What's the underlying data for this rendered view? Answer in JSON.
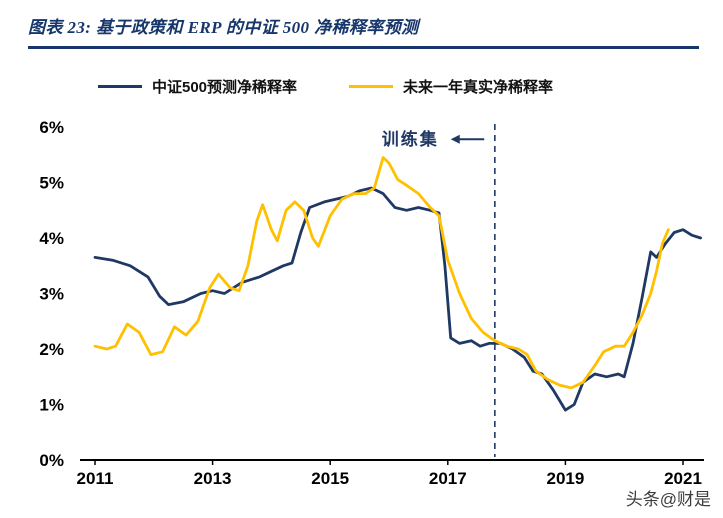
{
  "page": {
    "title": "图表 23: 基于政策和 ERP 的中证 500 净稀释率预测",
    "watermark": "头条@财是"
  },
  "chart_data": {
    "type": "line",
    "title": "基于政策和ERP的中证500净稀释率预测",
    "xlabel": "",
    "ylabel": "",
    "ylim": [
      0,
      6
    ],
    "x_range": [
      2011,
      2021.3
    ],
    "grid": false,
    "legend_position": "top",
    "ytick_labels": [
      "6%",
      "5%",
      "4%",
      "3%",
      "2%",
      "1%",
      "0%"
    ],
    "xtick_labels": [
      "2011",
      "2013",
      "2015",
      "2017",
      "2019",
      "2021"
    ],
    "annotation": {
      "label": "训练集"
    },
    "train_split_x": 2017.8,
    "colors": {
      "predicted": "#1f3864",
      "actual": "#ffc000",
      "axis": "#000000",
      "title": "#17366b"
    },
    "series": [
      {
        "name": "中证500预测净稀释率",
        "color": "#1f3864",
        "points": [
          [
            2011.0,
            3.65
          ],
          [
            2011.3,
            3.6
          ],
          [
            2011.6,
            3.5
          ],
          [
            2011.9,
            3.3
          ],
          [
            2012.1,
            2.95
          ],
          [
            2012.25,
            2.8
          ],
          [
            2012.5,
            2.85
          ],
          [
            2012.8,
            3.0
          ],
          [
            2013.0,
            3.05
          ],
          [
            2013.2,
            3.0
          ],
          [
            2013.5,
            3.2
          ],
          [
            2013.8,
            3.3
          ],
          [
            2014.0,
            3.4
          ],
          [
            2014.2,
            3.5
          ],
          [
            2014.35,
            3.55
          ],
          [
            2014.5,
            4.1
          ],
          [
            2014.65,
            4.55
          ],
          [
            2014.9,
            4.65
          ],
          [
            2015.1,
            4.7
          ],
          [
            2015.3,
            4.75
          ],
          [
            2015.5,
            4.85
          ],
          [
            2015.7,
            4.9
          ],
          [
            2015.9,
            4.8
          ],
          [
            2016.1,
            4.55
          ],
          [
            2016.3,
            4.5
          ],
          [
            2016.5,
            4.55
          ],
          [
            2016.7,
            4.5
          ],
          [
            2016.85,
            4.45
          ],
          [
            2016.95,
            3.5
          ],
          [
            2017.05,
            2.2
          ],
          [
            2017.2,
            2.1
          ],
          [
            2017.4,
            2.15
          ],
          [
            2017.55,
            2.05
          ],
          [
            2017.7,
            2.1
          ],
          [
            2017.9,
            2.1
          ],
          [
            2018.1,
            2.0
          ],
          [
            2018.3,
            1.85
          ],
          [
            2018.45,
            1.6
          ],
          [
            2018.6,
            1.55
          ],
          [
            2018.8,
            1.25
          ],
          [
            2019.0,
            0.9
          ],
          [
            2019.15,
            1.0
          ],
          [
            2019.3,
            1.4
          ],
          [
            2019.5,
            1.55
          ],
          [
            2019.7,
            1.5
          ],
          [
            2019.9,
            1.55
          ],
          [
            2020.0,
            1.5
          ],
          [
            2020.15,
            2.1
          ],
          [
            2020.3,
            2.9
          ],
          [
            2020.45,
            3.75
          ],
          [
            2020.55,
            3.65
          ],
          [
            2020.7,
            3.9
          ],
          [
            2020.85,
            4.1
          ],
          [
            2021.0,
            4.15
          ],
          [
            2021.15,
            4.05
          ],
          [
            2021.3,
            4.0
          ]
        ]
      },
      {
        "name": "未来一年真实净稀释率",
        "color": "#ffc000",
        "points": [
          [
            2011.0,
            2.05
          ],
          [
            2011.2,
            2.0
          ],
          [
            2011.35,
            2.05
          ],
          [
            2011.55,
            2.45
          ],
          [
            2011.75,
            2.3
          ],
          [
            2011.95,
            1.9
          ],
          [
            2012.15,
            1.95
          ],
          [
            2012.35,
            2.4
          ],
          [
            2012.55,
            2.25
          ],
          [
            2012.75,
            2.5
          ],
          [
            2012.95,
            3.1
          ],
          [
            2013.1,
            3.35
          ],
          [
            2013.3,
            3.1
          ],
          [
            2013.45,
            3.05
          ],
          [
            2013.6,
            3.5
          ],
          [
            2013.75,
            4.3
          ],
          [
            2013.85,
            4.6
          ],
          [
            2014.0,
            4.15
          ],
          [
            2014.1,
            3.95
          ],
          [
            2014.25,
            4.5
          ],
          [
            2014.4,
            4.65
          ],
          [
            2014.55,
            4.5
          ],
          [
            2014.7,
            4.0
          ],
          [
            2014.8,
            3.85
          ],
          [
            2015.0,
            4.4
          ],
          [
            2015.2,
            4.7
          ],
          [
            2015.4,
            4.8
          ],
          [
            2015.6,
            4.8
          ],
          [
            2015.75,
            4.9
          ],
          [
            2015.9,
            5.45
          ],
          [
            2016.0,
            5.35
          ],
          [
            2016.15,
            5.05
          ],
          [
            2016.3,
            4.95
          ],
          [
            2016.5,
            4.8
          ],
          [
            2016.7,
            4.55
          ],
          [
            2016.85,
            4.4
          ],
          [
            2017.0,
            3.6
          ],
          [
            2017.2,
            3.0
          ],
          [
            2017.4,
            2.55
          ],
          [
            2017.6,
            2.3
          ],
          [
            2017.8,
            2.15
          ],
          [
            2018.0,
            2.05
          ],
          [
            2018.2,
            2.0
          ],
          [
            2018.35,
            1.9
          ],
          [
            2018.5,
            1.6
          ],
          [
            2018.7,
            1.45
          ],
          [
            2018.9,
            1.35
          ],
          [
            2019.1,
            1.3
          ],
          [
            2019.3,
            1.4
          ],
          [
            2019.5,
            1.7
          ],
          [
            2019.65,
            1.95
          ],
          [
            2019.85,
            2.05
          ],
          [
            2020.0,
            2.05
          ],
          [
            2020.15,
            2.3
          ],
          [
            2020.3,
            2.6
          ],
          [
            2020.45,
            3.0
          ],
          [
            2020.55,
            3.4
          ],
          [
            2020.65,
            3.9
          ],
          [
            2020.75,
            4.15
          ]
        ]
      }
    ]
  }
}
